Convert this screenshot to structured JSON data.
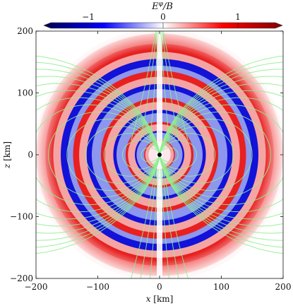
{
  "chart_data": {
    "type": "heatmap",
    "title": "",
    "colorbar": {
      "label": "E^φ/B",
      "label_main": "E",
      "label_sup": "φ",
      "label_tail": "/B",
      "range": [
        -1.5,
        1.5
      ],
      "ticks": [
        -1,
        0,
        1
      ],
      "tick_labels": [
        "−1",
        "0",
        "1"
      ],
      "colormap": "seismic",
      "placement": "top"
    },
    "xlabel": "x [km]",
    "xlabel_var": "x",
    "xlabel_unit": "[km]",
    "ylabel": "z [km]",
    "ylabel_var": "z",
    "ylabel_unit": "[km]",
    "xlim": [
      -200,
      200
    ],
    "ylim": [
      -200,
      200
    ],
    "xticks": [
      -200,
      -100,
      0,
      100,
      200
    ],
    "yticks": [
      -200,
      -100,
      0,
      100,
      200
    ],
    "xtick_labels": [
      "−200",
      "−100",
      "0",
      "100",
      "200"
    ],
    "ytick_labels": [
      "−200",
      "−100",
      "0",
      "100",
      "200"
    ],
    "field": {
      "description_units": "normalized E^phi/B",
      "outer_radius": 200,
      "ring_radii_positive": [
        25,
        55,
        95,
        140,
        185
      ],
      "ring_radii_negative": [
        40,
        75,
        118,
        160
      ]
    },
    "overlay": {
      "type": "streamlines",
      "color": "#90ee90",
      "central_object": {
        "x": 0,
        "z": 0,
        "radius": 3,
        "color": "#000000"
      }
    }
  }
}
